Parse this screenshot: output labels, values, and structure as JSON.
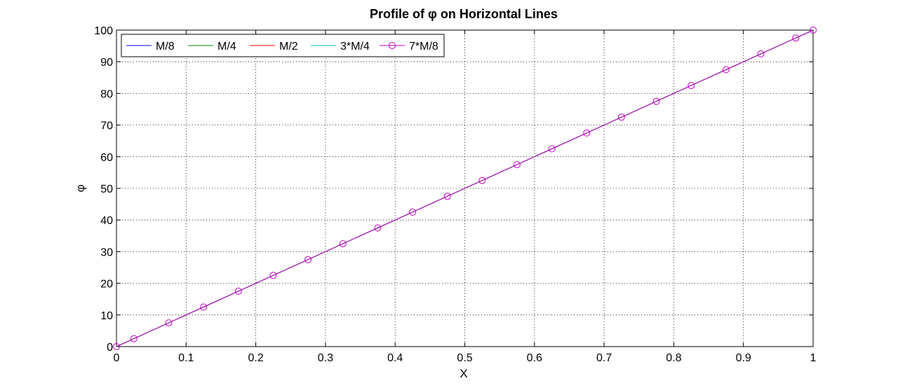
{
  "chart_data": {
    "type": "line",
    "title": "Profile of φ on Horizontal Lines",
    "xlabel": "X",
    "ylabel": "φ",
    "xlim": [
      0,
      1
    ],
    "ylim": [
      0,
      100
    ],
    "xticks": [
      0,
      0.1,
      0.2,
      0.3,
      0.4,
      0.5,
      0.6,
      0.7,
      0.8,
      0.9,
      1
    ],
    "xtick_labels": [
      "0",
      "0.1",
      "0.2",
      "0.3",
      "0.4",
      "0.5",
      "0.6",
      "0.7",
      "0.8",
      "0.9",
      "1"
    ],
    "yticks": [
      0,
      10,
      20,
      30,
      40,
      50,
      60,
      70,
      80,
      90,
      100
    ],
    "ytick_labels": [
      "0",
      "10",
      "20",
      "30",
      "40",
      "50",
      "60",
      "70",
      "80",
      "90",
      "100"
    ],
    "grid": true,
    "legend_position": "top-left",
    "series": [
      {
        "name": "M/8",
        "color": "#0000ff",
        "marker": "none",
        "x": [
          0,
          0.025,
          0.075,
          0.125,
          0.175,
          0.225,
          0.275,
          0.325,
          0.375,
          0.425,
          0.475,
          0.525,
          0.575,
          0.625,
          0.675,
          0.725,
          0.775,
          0.825,
          0.875,
          0.925,
          0.975,
          1
        ],
        "y": [
          0,
          2.5,
          7.5,
          12.5,
          17.5,
          22.5,
          27.5,
          32.5,
          37.5,
          42.5,
          47.5,
          52.5,
          57.5,
          62.5,
          67.5,
          72.5,
          77.5,
          82.5,
          87.5,
          92.5,
          97.5,
          100
        ]
      },
      {
        "name": "M/4",
        "color": "#008000",
        "marker": "none",
        "x": [
          0,
          0.025,
          0.075,
          0.125,
          0.175,
          0.225,
          0.275,
          0.325,
          0.375,
          0.425,
          0.475,
          0.525,
          0.575,
          0.625,
          0.675,
          0.725,
          0.775,
          0.825,
          0.875,
          0.925,
          0.975,
          1
        ],
        "y": [
          0,
          2.5,
          7.5,
          12.5,
          17.5,
          22.5,
          27.5,
          32.5,
          37.5,
          42.5,
          47.5,
          52.5,
          57.5,
          62.5,
          67.5,
          72.5,
          77.5,
          82.5,
          87.5,
          92.5,
          97.5,
          100
        ]
      },
      {
        "name": "M/2",
        "color": "#ff0000",
        "marker": "none",
        "x": [
          0,
          0.025,
          0.075,
          0.125,
          0.175,
          0.225,
          0.275,
          0.325,
          0.375,
          0.425,
          0.475,
          0.525,
          0.575,
          0.625,
          0.675,
          0.725,
          0.775,
          0.825,
          0.875,
          0.925,
          0.975,
          1
        ],
        "y": [
          0,
          2.5,
          7.5,
          12.5,
          17.5,
          22.5,
          27.5,
          32.5,
          37.5,
          42.5,
          47.5,
          52.5,
          57.5,
          62.5,
          67.5,
          72.5,
          77.5,
          82.5,
          87.5,
          92.5,
          97.5,
          100
        ]
      },
      {
        "name": "3*M/4",
        "color": "#00bfbf",
        "marker": "none",
        "x": [
          0,
          0.025,
          0.075,
          0.125,
          0.175,
          0.225,
          0.275,
          0.325,
          0.375,
          0.425,
          0.475,
          0.525,
          0.575,
          0.625,
          0.675,
          0.725,
          0.775,
          0.825,
          0.875,
          0.925,
          0.975,
          1
        ],
        "y": [
          0,
          2.5,
          7.5,
          12.5,
          17.5,
          22.5,
          27.5,
          32.5,
          37.5,
          42.5,
          47.5,
          52.5,
          57.5,
          62.5,
          67.5,
          72.5,
          77.5,
          82.5,
          87.5,
          92.5,
          97.5,
          100
        ]
      },
      {
        "name": "7*M/8",
        "color": "#bf00bf",
        "marker": "circle",
        "x": [
          0,
          0.025,
          0.075,
          0.125,
          0.175,
          0.225,
          0.275,
          0.325,
          0.375,
          0.425,
          0.475,
          0.525,
          0.575,
          0.625,
          0.675,
          0.725,
          0.775,
          0.825,
          0.875,
          0.925,
          0.975,
          1
        ],
        "y": [
          0,
          2.5,
          7.5,
          12.5,
          17.5,
          22.5,
          27.5,
          32.5,
          37.5,
          42.5,
          47.5,
          52.5,
          57.5,
          62.5,
          67.5,
          72.5,
          77.5,
          82.5,
          87.5,
          92.5,
          97.5,
          100
        ]
      }
    ]
  }
}
